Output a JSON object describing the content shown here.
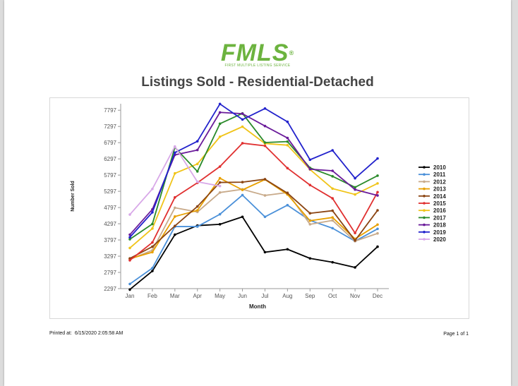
{
  "logo": {
    "text": "FMLS",
    "reg": "®",
    "subtitle": "FIRST MULTIPLE LISTING SERVICE"
  },
  "title": "Listings Sold - Residential-Detached",
  "footer": {
    "printed_label": "Printed at:",
    "printed_value": "6/15/2020 2:05:58 AM",
    "page": "Page 1 of 1"
  },
  "chart_data": {
    "type": "line",
    "title": "Listings Sold - Residential-Detached",
    "xlabel": "Month",
    "ylabel": "Number Sold",
    "categories": [
      "Jan",
      "Feb",
      "Mar",
      "Apr",
      "May",
      "Jun",
      "Jul",
      "Aug",
      "Sep",
      "Oct",
      "Nov",
      "Dec"
    ],
    "y_ticks": [
      2297,
      2797,
      3297,
      3797,
      4297,
      4797,
      5297,
      5797,
      6297,
      6797,
      7297,
      7797
    ],
    "ylim": [
      2297,
      7997
    ],
    "grid": false,
    "legend": "right",
    "series": [
      {
        "name": "2010",
        "color": "#000000",
        "values": [
          2270,
          2840,
          3960,
          4240,
          4280,
          4510,
          3420,
          3510,
          3230,
          3110,
          2950,
          3590
        ]
      },
      {
        "name": "2011",
        "color": "#4a90d9",
        "values": [
          2440,
          2930,
          4210,
          4210,
          4590,
          5180,
          4510,
          4870,
          4400,
          4160,
          3760,
          4140
        ]
      },
      {
        "name": "2012",
        "color": "#c8aa8a",
        "values": [
          3200,
          3480,
          4790,
          4660,
          5260,
          5360,
          5170,
          5260,
          4280,
          4400,
          3760,
          4000
        ]
      },
      {
        "name": "2013",
        "color": "#e8a000",
        "values": [
          3220,
          3420,
          4520,
          4710,
          5700,
          5340,
          5660,
          5200,
          4390,
          4490,
          3830,
          4270
        ]
      },
      {
        "name": "2014",
        "color": "#8b4513",
        "values": [
          3230,
          3590,
          4230,
          4830,
          5570,
          5580,
          5670,
          5240,
          4620,
          4700,
          3780,
          4710
        ]
      },
      {
        "name": "2015",
        "color": "#e03030",
        "values": [
          3170,
          3720,
          5110,
          5560,
          6060,
          6780,
          6700,
          6010,
          5490,
          5080,
          4010,
          5270
        ]
      },
      {
        "name": "2016",
        "color": "#f0c419",
        "values": [
          3550,
          4150,
          5850,
          6140,
          6980,
          7290,
          6770,
          6720,
          5970,
          5380,
          5200,
          5540
        ]
      },
      {
        "name": "2017",
        "color": "#2a8a2a",
        "values": [
          3820,
          4290,
          6650,
          5910,
          7380,
          7700,
          6800,
          6830,
          6020,
          5760,
          5420,
          5780
        ]
      },
      {
        "name": "2018",
        "color": "#6a1b9a",
        "values": [
          3960,
          4740,
          6420,
          6570,
          7730,
          7690,
          7310,
          6940,
          5980,
          5930,
          5350,
          5170
        ]
      },
      {
        "name": "2019",
        "color": "#2222cc",
        "values": [
          3880,
          4650,
          6490,
          6840,
          7990,
          7510,
          7850,
          7440,
          6270,
          6560,
          5700,
          6310
        ]
      },
      {
        "name": "2020",
        "color": "#d8a8e8",
        "values": [
          4580,
          5370,
          6680,
          5590,
          5460,
          null,
          null,
          null,
          null,
          null,
          null,
          null
        ]
      }
    ]
  }
}
